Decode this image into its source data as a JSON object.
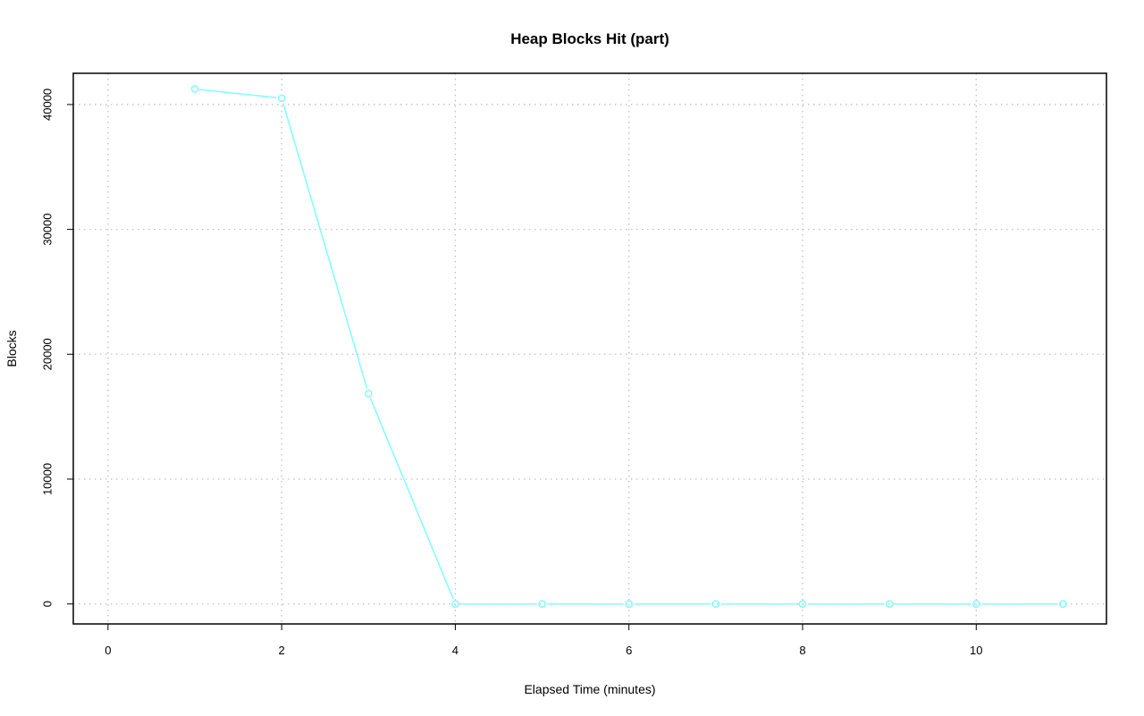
{
  "chart_data": {
    "type": "line",
    "title": "Heap Blocks Hit (part)",
    "xlabel": "Elapsed Time (minutes)",
    "ylabel": "Blocks",
    "xlim": [
      -0.4,
      11.5
    ],
    "ylim": [
      -1600,
      42500
    ],
    "xticks": [
      0,
      2,
      4,
      6,
      8,
      10
    ],
    "yticks": [
      0,
      10000,
      20000,
      30000,
      40000
    ],
    "grid": true,
    "series": [
      {
        "color": "#7fffff",
        "marker": "open-circle",
        "x": [
          1,
          2,
          3,
          4,
          5,
          6,
          7,
          8,
          9,
          10,
          11
        ],
        "y": [
          41250,
          40500,
          16850,
          0,
          0,
          0,
          0,
          0,
          0,
          0,
          0
        ]
      }
    ]
  }
}
